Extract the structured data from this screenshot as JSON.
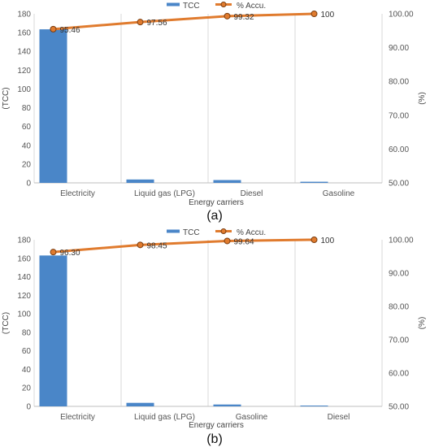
{
  "colors": {
    "bar": "#4a86c8",
    "line": "#e07b2e",
    "grid": "#d9d9d9"
  },
  "chart_data": [
    {
      "panel_label": "(a)",
      "type": "bar+line",
      "categories": [
        "Electricity",
        "Liquid gas (LPG)",
        "Diesel",
        "Gasoline"
      ],
      "series": [
        {
          "name": "TCC",
          "type": "bar",
          "axis": "left",
          "values": [
            163.5,
            3.6,
            3.0,
            1.2
          ]
        },
        {
          "name": "% Accu.",
          "type": "line",
          "axis": "right",
          "values": [
            95.46,
            97.56,
            99.32,
            100
          ],
          "labels": [
            "95.46",
            "97.56",
            "99.32",
            "100"
          ]
        }
      ],
      "xlabel": "Energy carriers",
      "ylabel_left": "(TCC)",
      "ylabel_right": "(%)",
      "ylim_left": [
        0,
        180
      ],
      "ylim_right": [
        50,
        100
      ],
      "yticks_left": [
        "0",
        "20",
        "40",
        "60",
        "80",
        "100",
        "120",
        "140",
        "160",
        "180"
      ],
      "yticks_right": [
        "50.00",
        "60.00",
        "70.00",
        "80.00",
        "90.00",
        "100.00"
      ],
      "legend_placement": "top-center",
      "grid": "vertical"
    },
    {
      "panel_label": "(b)",
      "type": "bar+line",
      "categories": [
        "Electricity",
        "Liquid gas (LPG)",
        "Gasoline",
        "Diesel"
      ],
      "series": [
        {
          "name": "TCC",
          "type": "bar",
          "axis": "left",
          "values": [
            163.0,
            3.8,
            2.0,
            0.6
          ]
        },
        {
          "name": "% Accu.",
          "type": "line",
          "axis": "right",
          "values": [
            96.3,
            98.45,
            99.64,
            100
          ],
          "labels": [
            "96.30",
            "98.45",
            "99.64",
            "100"
          ]
        }
      ],
      "xlabel": "Energy carriers",
      "ylabel_left": "(TCC)",
      "ylabel_right": "(%)",
      "ylim_left": [
        0,
        180
      ],
      "ylim_right": [
        50,
        100
      ],
      "yticks_left": [
        "0",
        "20",
        "40",
        "60",
        "80",
        "100",
        "120",
        "140",
        "160",
        "180"
      ],
      "yticks_right": [
        "50.00",
        "60.00",
        "70.00",
        "80.00",
        "90.00",
        "100.00"
      ],
      "legend_placement": "top-center",
      "grid": "vertical"
    }
  ]
}
